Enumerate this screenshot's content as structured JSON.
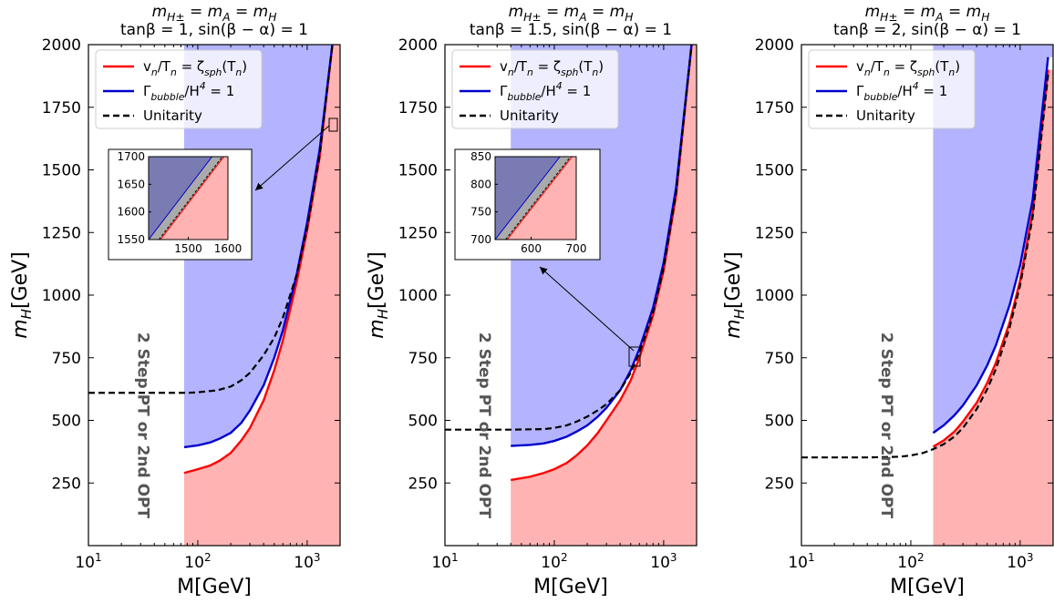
{
  "chart_data": [
    {
      "type": "area",
      "title_line1": "m_{H±} = m_A = m_H",
      "title_line2": "tanβ = 1, sin(β − α) = 1",
      "xlabel": "M[GeV]",
      "ylabel": "m_H[GeV]",
      "xscale": "log",
      "xlim": [
        10,
        2000
      ],
      "ylim": [
        0,
        2000
      ],
      "yticks": [
        250,
        500,
        750,
        1000,
        1250,
        1500,
        1750,
        2000
      ],
      "xticks": [
        10,
        100,
        1000
      ],
      "xtick_labels": [
        "10",
        "10",
        "10"
      ],
      "xtick_exps": [
        "1",
        "2",
        "3"
      ],
      "grid": false,
      "legend_placement": "top-left",
      "legend": [
        {
          "label": "v_n/T_n = ζ_sph(T_n)",
          "color": "#ff0000",
          "style": "solid"
        },
        {
          "label": "Γ_bubble/H^4 = 1",
          "color": "#0000cc",
          "style": "solid"
        },
        {
          "label": "Unitarity",
          "color": "#000000",
          "style": "dashed"
        }
      ],
      "series": [
        {
          "name": "v_n/T_n = ζ_sph(T_n)",
          "color": "#ff0000",
          "x": [
            75,
            100,
            130,
            160,
            200,
            250,
            300,
            400,
            500,
            600,
            800,
            1000,
            1300,
            1700
          ],
          "y": [
            290,
            305,
            320,
            340,
            370,
            420,
            470,
            580,
            700,
            820,
            1050,
            1260,
            1550,
            2000
          ]
        },
        {
          "name": "Γ_bubble/H^4 = 1",
          "color": "#0000cc",
          "x": [
            75,
            100,
            130,
            160,
            200,
            250,
            300,
            400,
            500,
            600,
            800,
            1000,
            1300,
            1700
          ],
          "y": [
            393,
            400,
            412,
            428,
            450,
            490,
            540,
            640,
            750,
            860,
            1080,
            1290,
            1580,
            2000
          ]
        },
        {
          "name": "Unitarity",
          "color": "#000000",
          "x": [
            10,
            30,
            60,
            80,
            100,
            150,
            200,
            250,
            300,
            400,
            500,
            600,
            800,
            1000,
            1300,
            1700
          ],
          "y": [
            610,
            610,
            610,
            610,
            612,
            620,
            635,
            660,
            690,
            760,
            830,
            910,
            1080,
            1270,
            1560,
            2000
          ]
        }
      ],
      "regions": [
        {
          "name": "red-region",
          "color": "#ffb3b3",
          "x_start": 75
        },
        {
          "name": "blue-region",
          "color": "#b3b3ff",
          "x_start": 75
        }
      ],
      "annotation": "2 Step PT or 2nd OPT",
      "inset": {
        "xlim": [
          1400,
          1600
        ],
        "ylim": [
          1550,
          1700
        ],
        "xticks": [
          1500,
          1600
        ],
        "yticks": [
          1550,
          1600,
          1650,
          1700
        ],
        "xtick_labels": [
          "1500",
          "1600"
        ],
        "ytick_labels": [
          "1550",
          "1600",
          "1650",
          "1700"
        ]
      }
    },
    {
      "type": "area",
      "title_line1": "m_{H±} = m_A = m_H",
      "title_line2": "tanβ = 1.5, sin(β − α) = 1",
      "xlabel": "M[GeV]",
      "ylabel": "m_H[GeV]",
      "xscale": "log",
      "xlim": [
        10,
        2000
      ],
      "ylim": [
        0,
        2000
      ],
      "yticks": [
        250,
        500,
        750,
        1000,
        1250,
        1500,
        1750,
        2000
      ],
      "xticks": [
        10,
        100,
        1000
      ],
      "xtick_labels": [
        "10",
        "10",
        "10"
      ],
      "xtick_exps": [
        "1",
        "2",
        "3"
      ],
      "grid": false,
      "legend_placement": "top-left",
      "legend": [
        {
          "label": "v_n/T_n = ζ_sph(T_n)",
          "color": "#ff0000",
          "style": "solid"
        },
        {
          "label": "Γ_bubble/H^4 = 1",
          "color": "#0000cc",
          "style": "solid"
        },
        {
          "label": "Unitarity",
          "color": "#000000",
          "style": "dashed"
        }
      ],
      "series": [
        {
          "name": "v_n/T_n = ζ_sph(T_n)",
          "color": "#ff0000",
          "x": [
            40,
            60,
            80,
            100,
            130,
            160,
            200,
            250,
            300,
            400,
            500,
            600,
            800,
            1000,
            1300,
            1800
          ],
          "y": [
            262,
            275,
            290,
            305,
            330,
            360,
            400,
            450,
            500,
            580,
            660,
            750,
            920,
            1100,
            1400,
            2000
          ]
        },
        {
          "name": "Γ_bubble/H^4 = 1",
          "color": "#0000cc",
          "x": [
            40,
            60,
            80,
            100,
            130,
            160,
            200,
            250,
            300,
            400,
            500,
            600,
            800,
            1000,
            1300,
            1800
          ],
          "y": [
            398,
            402,
            408,
            418,
            435,
            455,
            480,
            515,
            550,
            620,
            700,
            785,
            950,
            1130,
            1430,
            2000
          ]
        },
        {
          "name": "Unitarity",
          "color": "#000000",
          "x": [
            10,
            40,
            80,
            100,
            130,
            160,
            200,
            250,
            300,
            400,
            500,
            600,
            800,
            1000,
            1300,
            1800
          ],
          "y": [
            463,
            463,
            465,
            470,
            480,
            495,
            515,
            540,
            565,
            620,
            690,
            770,
            930,
            1110,
            1410,
            2000
          ]
        }
      ],
      "regions": [
        {
          "name": "red-region",
          "color": "#ffb3b3",
          "x_start": 40
        },
        {
          "name": "blue-region",
          "color": "#b3b3ff",
          "x_start": 40
        }
      ],
      "annotation": "2 Step PT or 2nd OPT",
      "inset": {
        "xlim": [
          520,
          700
        ],
        "ylim": [
          700,
          850
        ],
        "xticks": [
          600,
          700
        ],
        "yticks": [
          700,
          750,
          800,
          850
        ],
        "xtick_labels": [
          "600",
          "700"
        ],
        "ytick_labels": [
          "700",
          "750",
          "800",
          "850"
        ]
      }
    },
    {
      "type": "area",
      "title_line1": "m_{H±} = m_A = m_H",
      "title_line2": "tanβ = 2, sin(β − α) = 1",
      "xlabel": "M[GeV]",
      "ylabel": "m_H[GeV]",
      "xscale": "log",
      "xlim": [
        10,
        2000
      ],
      "ylim": [
        0,
        2000
      ],
      "yticks": [
        250,
        500,
        750,
        1000,
        1250,
        1500,
        1750,
        2000
      ],
      "xticks": [
        10,
        100,
        1000
      ],
      "xtick_labels": [
        "10",
        "10",
        "10"
      ],
      "xtick_exps": [
        "1",
        "2",
        "3"
      ],
      "grid": false,
      "legend_placement": "top-left",
      "legend": [
        {
          "label": "v_n/T_n = ζ_sph(T_n)",
          "color": "#ff0000",
          "style": "solid"
        },
        {
          "label": "Γ_bubble/H^4 = 1",
          "color": "#0000cc",
          "style": "solid"
        },
        {
          "label": "Unitarity",
          "color": "#000000",
          "style": "dashed"
        }
      ],
      "series": [
        {
          "name": "v_n/T_n = ζ_sph(T_n)",
          "color": "#ff0000",
          "x": [
            160,
            200,
            250,
            300,
            400,
            500,
            600,
            800,
            1000,
            1300,
            1800
          ],
          "y": [
            395,
            420,
            455,
            495,
            570,
            650,
            730,
            890,
            1060,
            1330,
            1900
          ]
        },
        {
          "name": "Γ_bubble/H^4 = 1",
          "color": "#0000cc",
          "x": [
            160,
            200,
            250,
            300,
            400,
            500,
            600,
            800,
            1000,
            1300,
            1800
          ],
          "y": [
            450,
            480,
            520,
            560,
            640,
            720,
            800,
            960,
            1120,
            1380,
            1950
          ]
        },
        {
          "name": "Unitarity",
          "color": "#000000",
          "x": [
            10,
            40,
            80,
            100,
            130,
            160,
            200,
            250,
            300,
            400,
            500,
            600,
            800,
            1000,
            1300,
            1800
          ],
          "y": [
            352,
            352,
            355,
            360,
            370,
            385,
            405,
            435,
            470,
            545,
            625,
            705,
            870,
            1040,
            1310,
            1880
          ]
        }
      ],
      "regions": [
        {
          "name": "red-region",
          "color": "#ffb3b3",
          "x_start": 160
        },
        {
          "name": "blue-region",
          "color": "#b3b3ff",
          "x_start": 160
        }
      ],
      "annotation": "2 Step PT or 2nd OPT"
    }
  ]
}
